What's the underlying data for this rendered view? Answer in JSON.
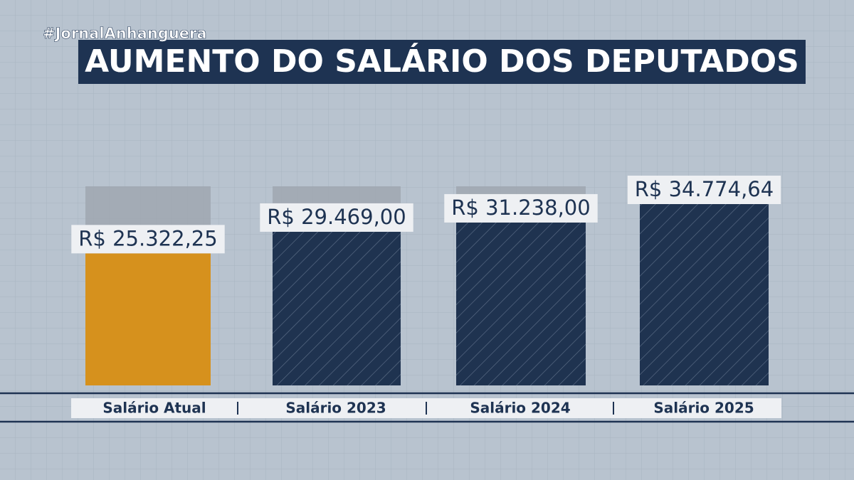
{
  "chart_data": {
    "type": "bar",
    "title": "AUMENTO DO SALÁRIO DOS DEPUTADOS",
    "annotations": [
      "#JornalAnhanguera"
    ],
    "categories": [
      "Salário Atual",
      "Salário 2023",
      "Salário 2024",
      "Salário 2025"
    ],
    "values": [
      25322.25,
      29469.0,
      31238.0,
      34774.64
    ],
    "value_labels": [
      "R$ 25.322,25",
      "R$ 29.469,00",
      "R$ 31.238,00",
      "R$ 34.774,64"
    ],
    "colors": [
      "#d6911d",
      "#1f3350",
      "#1f3350",
      "#1f3350"
    ]
  }
}
